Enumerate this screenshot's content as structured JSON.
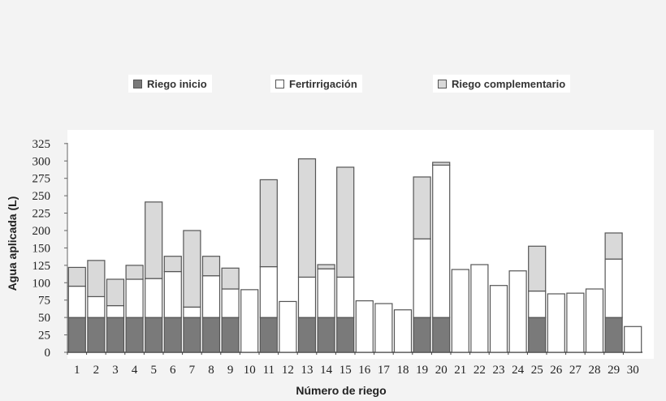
{
  "chart_data": {
    "type": "bar",
    "stacked": true,
    "xlabel": "Número de riego",
    "ylabel": "Agua aplicada (L)",
    "y_tick_labels": [
      0,
      25,
      50,
      75,
      100,
      125,
      150,
      200,
      225,
      250,
      275,
      300,
      325
    ],
    "ylim": [
      0,
      325
    ],
    "grid": false,
    "legend_placement": "top",
    "categories": [
      "1",
      "2",
      "3",
      "4",
      "5",
      "6",
      "7",
      "8",
      "9",
      "10",
      "11",
      "12",
      "13",
      "14",
      "15",
      "16",
      "17",
      "18",
      "19",
      "20",
      "21",
      "22",
      "23",
      "24",
      "25",
      "26",
      "27",
      "28",
      "29",
      "30"
    ],
    "series": [
      {
        "name": "Riego inicio",
        "color": "#7a7a7a",
        "values": [
          50,
          50,
          50,
          50,
          50,
          50,
          50,
          50,
          50,
          0,
          50,
          0,
          50,
          50,
          50,
          0,
          0,
          0,
          50,
          50,
          0,
          0,
          0,
          0,
          50,
          0,
          0,
          0,
          50,
          0
        ]
      },
      {
        "name": "Fertirrigación",
        "color": "#ffffff",
        "values": [
          45,
          30,
          17,
          55,
          56,
          66,
          15,
          60,
          41,
          90,
          73,
          73,
          58,
          70,
          58,
          74,
          70,
          61,
          126,
          244,
          119,
          126,
          96,
          117,
          38,
          84,
          85,
          91,
          84,
          37
        ]
      },
      {
        "name": "Riego complementario",
        "color": "#d9d9d9",
        "values": [
          27,
          52,
          38,
          20,
          135,
          22,
          135,
          28,
          30,
          0,
          150,
          0,
          195,
          6,
          183,
          0,
          0,
          0,
          101,
          4,
          0,
          0,
          0,
          0,
          67,
          0,
          0,
          0,
          59,
          0
        ]
      }
    ]
  }
}
